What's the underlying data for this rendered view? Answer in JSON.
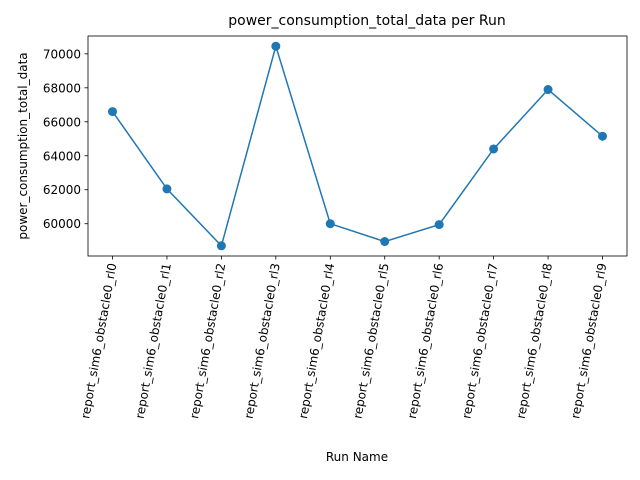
{
  "chart_data": {
    "type": "line",
    "title": "power_consumption_total_data per Run",
    "xlabel": "Run Name",
    "ylabel": "power_consumption_total_data",
    "categories": [
      "report_sim6_obstacle0_rl0",
      "report_sim6_obstacle0_rl1",
      "report_sim6_obstacle0_rl2",
      "report_sim6_obstacle0_rl3",
      "report_sim6_obstacle0_rl4",
      "report_sim6_obstacle0_rl5",
      "report_sim6_obstacle0_rl6",
      "report_sim6_obstacle0_rl7",
      "report_sim6_obstacle0_rl8",
      "report_sim6_obstacle0_rl9"
    ],
    "values": [
      66600,
      62050,
      58700,
      70450,
      60000,
      58950,
      59950,
      64400,
      67900,
      65150
    ],
    "yticks": [
      60000,
      62000,
      64000,
      66000,
      68000,
      70000
    ],
    "ylim": [
      58100,
      71050
    ],
    "grid": false,
    "color": "#1f77b4",
    "marker": "circle"
  }
}
